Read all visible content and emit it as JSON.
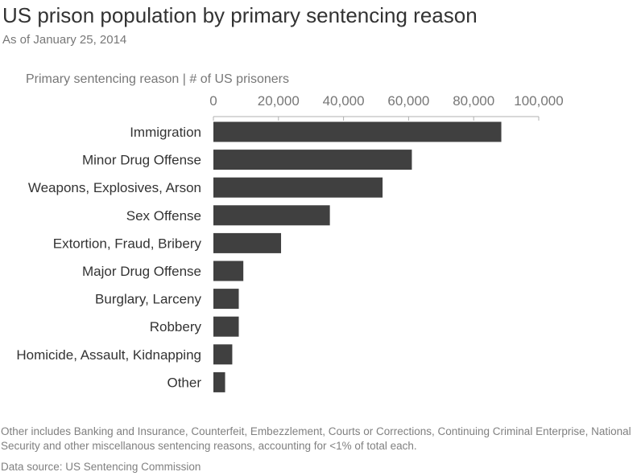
{
  "chart_data": {
    "type": "bar",
    "orientation": "horizontal",
    "title": "US prison population by primary sentencing reason",
    "subtitle": "As of January 25, 2014",
    "axis_header": "Primary sentencing reason | # of US prisoners",
    "categories": [
      "Immigration",
      "Minor Drug Offense",
      "Weapons, Explosives, Arson",
      "Sex Offense",
      "Extortion, Fraud, Bribery",
      "Major Drug Offense",
      "Burglary, Larceny",
      "Robbery",
      "Homicide, Assault, Kidnapping",
      "Other"
    ],
    "values": [
      88500,
      61000,
      52000,
      35800,
      20800,
      9200,
      7800,
      7800,
      5800,
      3600
    ],
    "xlim": [
      0,
      100000
    ],
    "xticks": [
      0,
      20000,
      40000,
      60000,
      80000,
      100000
    ],
    "xtick_labels": [
      "0",
      "20,000",
      "40,000",
      "60,000",
      "80,000",
      "100,000"
    ],
    "axis_position": "top",
    "grid": false,
    "bar_color": "#404040"
  },
  "footnote": "Other includes Banking and Insurance, Counterfeit, Embezzlement, Courts or Corrections, Continuing Criminal Enterprise, National Security and other miscellanous sentencing reasons, accounting for <1% of total each.",
  "source": "Data source: US Sentencing Commission"
}
